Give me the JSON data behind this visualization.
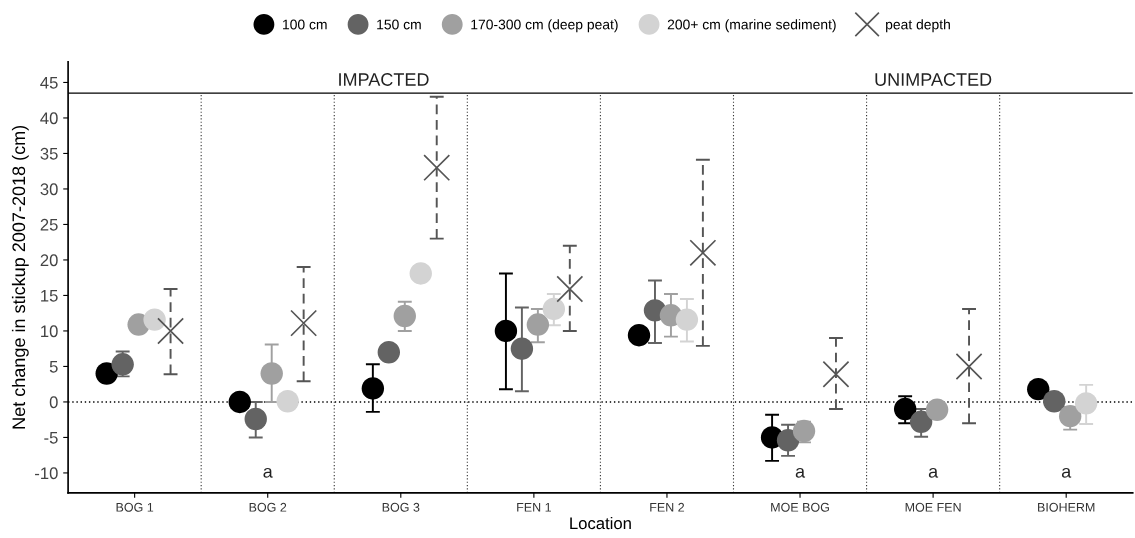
{
  "chart_data": {
    "type": "scatter",
    "ylabel": "Net change in stickup 2007-2018 (cm)",
    "xlabel": "Location",
    "categories": [
      "BOG 1",
      "BOG 2",
      "BOG 3",
      "FEN 1",
      "FEN 2",
      "MOE BOG",
      "MOE FEN",
      "BIOHERM"
    ],
    "series": [
      {
        "name": "100 cm",
        "color": "#000000",
        "marker": "circle",
        "values": [
          4.0,
          0.0,
          1.9,
          10.0,
          9.4,
          -5.0,
          -1.0,
          1.8
        ],
        "errors": [
          null,
          null,
          [
            -1.4,
            5.3
          ],
          [
            1.8,
            18.1
          ],
          null,
          [
            -8.3,
            -1.8
          ],
          [
            -3.0,
            0.8
          ],
          null
        ]
      },
      {
        "name": "150 cm",
        "color": "#636363",
        "marker": "circle",
        "values": [
          5.3,
          -2.4,
          7.0,
          7.5,
          12.9,
          -5.4,
          -2.8,
          0.1
        ],
        "errors": [
          [
            3.6,
            7.1
          ],
          [
            -5.0,
            0.0
          ],
          null,
          [
            1.5,
            13.3
          ],
          [
            8.3,
            17.1
          ],
          [
            -7.6,
            -3.2
          ],
          [
            -4.9,
            -1.0
          ],
          null
        ]
      },
      {
        "name": "170-300 cm (deep peat)",
        "color": "#a0a0a0",
        "marker": "circle",
        "values": [
          10.9,
          4.0,
          12.1,
          10.9,
          12.2,
          -4.1,
          -1.1,
          -2.0
        ],
        "errors": [
          null,
          [
            0.0,
            8.1
          ],
          [
            10.0,
            14.1
          ],
          [
            8.4,
            13.1
          ],
          [
            9.2,
            15.2
          ],
          [
            -5.7,
            -2.8
          ],
          null,
          [
            -3.9,
            -0.7
          ]
        ]
      },
      {
        "name": "200+ cm (marine sediment)",
        "color": "#d3d3d3",
        "marker": "circle",
        "values": [
          11.6,
          0.1,
          18.1,
          13.1,
          11.6,
          null,
          null,
          -0.2
        ],
        "errors": [
          null,
          null,
          null,
          [
            10.8,
            15.2
          ],
          [
            8.5,
            14.5
          ],
          null,
          null,
          [
            -3.1,
            2.4
          ]
        ]
      },
      {
        "name": "peat depth",
        "color": "#555555",
        "marker": "cross",
        "line_style": "dashed",
        "values": [
          10.0,
          11.1,
          33.0,
          15.9,
          21.0,
          3.9,
          5.0,
          null
        ],
        "errors": [
          [
            3.9,
            15.9
          ],
          [
            2.9,
            19.0
          ],
          [
            23.0,
            43.0
          ],
          [
            10.0,
            22.0
          ],
          [
            7.9,
            34.1
          ],
          [
            -1.0,
            9.0
          ],
          [
            -3.0,
            13.1
          ],
          null
        ]
      }
    ],
    "ylim": [
      -12.8,
      47.9
    ],
    "yticks": [
      -10,
      -5,
      0,
      5,
      10,
      15,
      20,
      25,
      30,
      35,
      40,
      45
    ],
    "ref_lines": [
      {
        "axis": "y",
        "value": 0,
        "color": "#000000",
        "line_style": "dotted"
      },
      {
        "axis": "y",
        "value": 43.5,
        "color": "#000000",
        "line_style": "solid"
      }
    ],
    "annotations": [
      "IMPACTED",
      "UNIMPACTED",
      "a",
      "a",
      "a",
      "a"
    ],
    "legend": "top",
    "grid": false
  }
}
